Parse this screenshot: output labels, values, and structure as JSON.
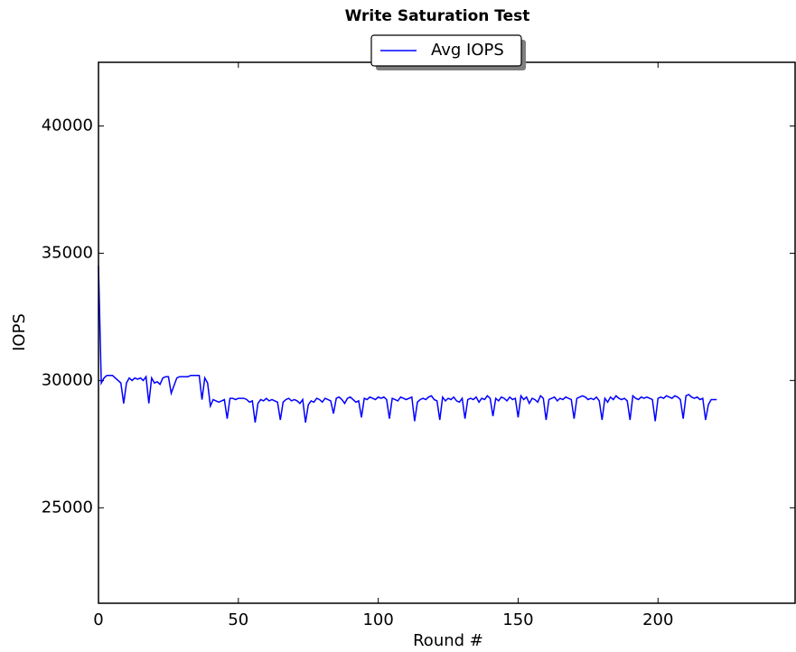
{
  "chart_data": {
    "type": "line",
    "title": "Write Saturation Test",
    "xlabel": "Round #",
    "ylabel": "IOPS",
    "legend": "upper center",
    "xlim": [
      0,
      249
    ],
    "xticks": [
      0,
      50,
      100,
      150,
      200
    ],
    "ylim": [
      21250,
      42500
    ],
    "yticks": [
      25000,
      30000,
      35000,
      40000
    ],
    "x": [
      0,
      1,
      2,
      3,
      4,
      5,
      6,
      7,
      8,
      9,
      10,
      11,
      12,
      13,
      14,
      15,
      16,
      17,
      18,
      19,
      20,
      21,
      22,
      23,
      24,
      25,
      26,
      27,
      28,
      29,
      30,
      31,
      32,
      33,
      34,
      35,
      36,
      37,
      38,
      39,
      40,
      41,
      42,
      43,
      44,
      45,
      46,
      47,
      48,
      49,
      50,
      51,
      52,
      53,
      54,
      55,
      56,
      57,
      58,
      59,
      60,
      61,
      62,
      63,
      64,
      65,
      66,
      67,
      68,
      69,
      70,
      71,
      72,
      73,
      74,
      75,
      76,
      77,
      78,
      79,
      80,
      81,
      82,
      83,
      84,
      85,
      86,
      87,
      88,
      89,
      90,
      91,
      92,
      93,
      94,
      95,
      96,
      97,
      98,
      99,
      100,
      101,
      102,
      103,
      104,
      105,
      106,
      107,
      108,
      109,
      110,
      111,
      112,
      113,
      114,
      115,
      116,
      117,
      118,
      119,
      120,
      121,
      122,
      123,
      124,
      125,
      126,
      127,
      128,
      129,
      130,
      131,
      132,
      133,
      134,
      135,
      136,
      137,
      138,
      139,
      140,
      141,
      142,
      143,
      144,
      145,
      146,
      147,
      148,
      149,
      150,
      151,
      152,
      153,
      154,
      155,
      156,
      157,
      158,
      159,
      160,
      161,
      162,
      163,
      164,
      165,
      166,
      167,
      168,
      169,
      170,
      171,
      172,
      173,
      174,
      175,
      176,
      177,
      178,
      179,
      180,
      181,
      182,
      183,
      184,
      185,
      186,
      187,
      188,
      189,
      190,
      191,
      192,
      193,
      194,
      195,
      196,
      197,
      198,
      199,
      200,
      201,
      202,
      203,
      204,
      205,
      206,
      207,
      208,
      209,
      210,
      211,
      212,
      213,
      214,
      215,
      216,
      217,
      218,
      219,
      220,
      221
    ],
    "series": [
      {
        "name": "Avg IOPS",
        "color": "#0000ff",
        "values": [
          34500,
          29900,
          30100,
          30200,
          30200,
          30200,
          30100,
          30000,
          29900,
          29100,
          29900,
          30100,
          30000,
          30100,
          30050,
          30100,
          30000,
          30150,
          29100,
          30100,
          29900,
          29950,
          29850,
          30100,
          30150,
          30150,
          29500,
          29800,
          30100,
          30150,
          30150,
          30150,
          30150,
          30200,
          30200,
          30200,
          30200,
          29250,
          30100,
          29900,
          29000,
          29250,
          29200,
          29150,
          29200,
          29250,
          28500,
          29300,
          29300,
          29250,
          29300,
          29300,
          29300,
          29250,
          29150,
          29200,
          28350,
          29100,
          29250,
          29200,
          29300,
          29200,
          29250,
          29200,
          29150,
          28450,
          29150,
          29250,
          29300,
          29200,
          29250,
          29200,
          29100,
          29250,
          28350,
          29050,
          29200,
          29150,
          29300,
          29250,
          29150,
          29300,
          29250,
          29200,
          28700,
          29300,
          29350,
          29250,
          29100,
          29300,
          29350,
          29250,
          29150,
          29200,
          28550,
          29300,
          29250,
          29350,
          29300,
          29250,
          29350,
          29300,
          29350,
          29250,
          28500,
          29300,
          29250,
          29200,
          29350,
          29300,
          29250,
          29300,
          29350,
          28400,
          29150,
          29250,
          29300,
          29250,
          29350,
          29400,
          29250,
          29200,
          28450,
          29350,
          29200,
          29300,
          29250,
          29350,
          29200,
          29150,
          29300,
          28500,
          29250,
          29300,
          29250,
          29350,
          29150,
          29300,
          29250,
          29400,
          29300,
          28600,
          29300,
          29200,
          29350,
          29300,
          29200,
          29350,
          29250,
          29300,
          28550,
          29400,
          29250,
          29350,
          29100,
          29300,
          29250,
          29150,
          29400,
          29300,
          28450,
          29250,
          29300,
          29350,
          29200,
          29300,
          29250,
          29350,
          29300,
          29250,
          28500,
          29300,
          29350,
          29400,
          29350,
          29250,
          29300,
          29250,
          29350,
          29200,
          28450,
          29300,
          29150,
          29350,
          29250,
          29400,
          29300,
          29250,
          29300,
          29200,
          28450,
          29400,
          29300,
          29250,
          29350,
          29300,
          29350,
          29300,
          29250,
          28400,
          29300,
          29350,
          29300,
          29400,
          29350,
          29300,
          29400,
          29350,
          29250,
          28500,
          29400,
          29450,
          29350,
          29300,
          29350,
          29250,
          29300,
          28450,
          29050,
          29250,
          29250,
          29250
        ]
      }
    ]
  }
}
